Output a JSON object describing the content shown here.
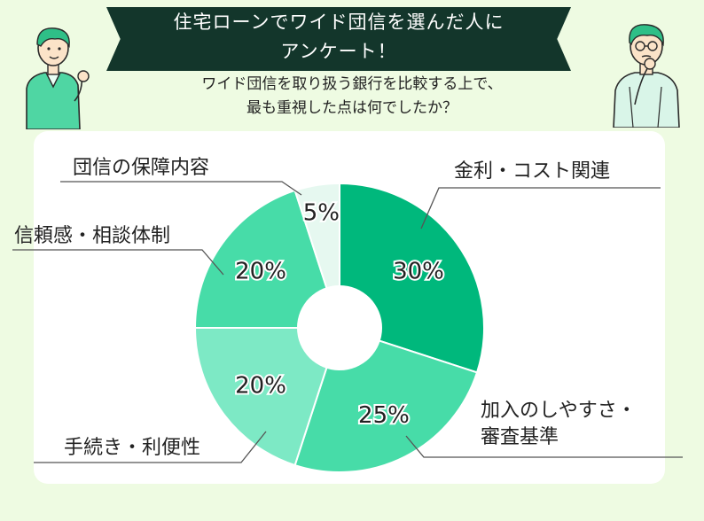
{
  "header": {
    "title_line1": "住宅ローンでワイド団信を選んだ人に",
    "title_line2": "アンケート！",
    "subtitle_line1": "ワイド団信を取り扱う銀行を比較する上で、",
    "subtitle_line2": "最も重視した点は何でしたか？"
  },
  "chart_data": {
    "type": "pie",
    "donut": true,
    "unit": "%",
    "slices": [
      {
        "label": "金利・コスト関連",
        "value": 30,
        "color": "#00b87c",
        "label_text": "30%"
      },
      {
        "label": "加入のしやすさ・審査基準",
        "value": 25,
        "color": "#47dca8",
        "label_text": "25%"
      },
      {
        "label": "手続き・利便性",
        "value": 20,
        "color": "#7de9c5",
        "label_text": "20%"
      },
      {
        "label": "信頼感・相談体制",
        "value": 20,
        "color": "#47dca8",
        "label_text": "20%"
      },
      {
        "label": "団信の保障内容",
        "value": 5,
        "color": "#e6f8f0",
        "label_text": "5%"
      }
    ],
    "category_labels": {
      "kinri_cost": "金利・コスト関連",
      "kanyu_line1": "加入のしやすさ・",
      "kanyu_line2": "審査基準",
      "tetsuzuki": "手続き・利便性",
      "shinrai": "信頼感・相談体制",
      "hosho": "団信の保障内容"
    }
  },
  "colors": {
    "banner": "#13362b",
    "background": "#eefbe2",
    "card": "#ffffff",
    "leader": "#555555"
  }
}
